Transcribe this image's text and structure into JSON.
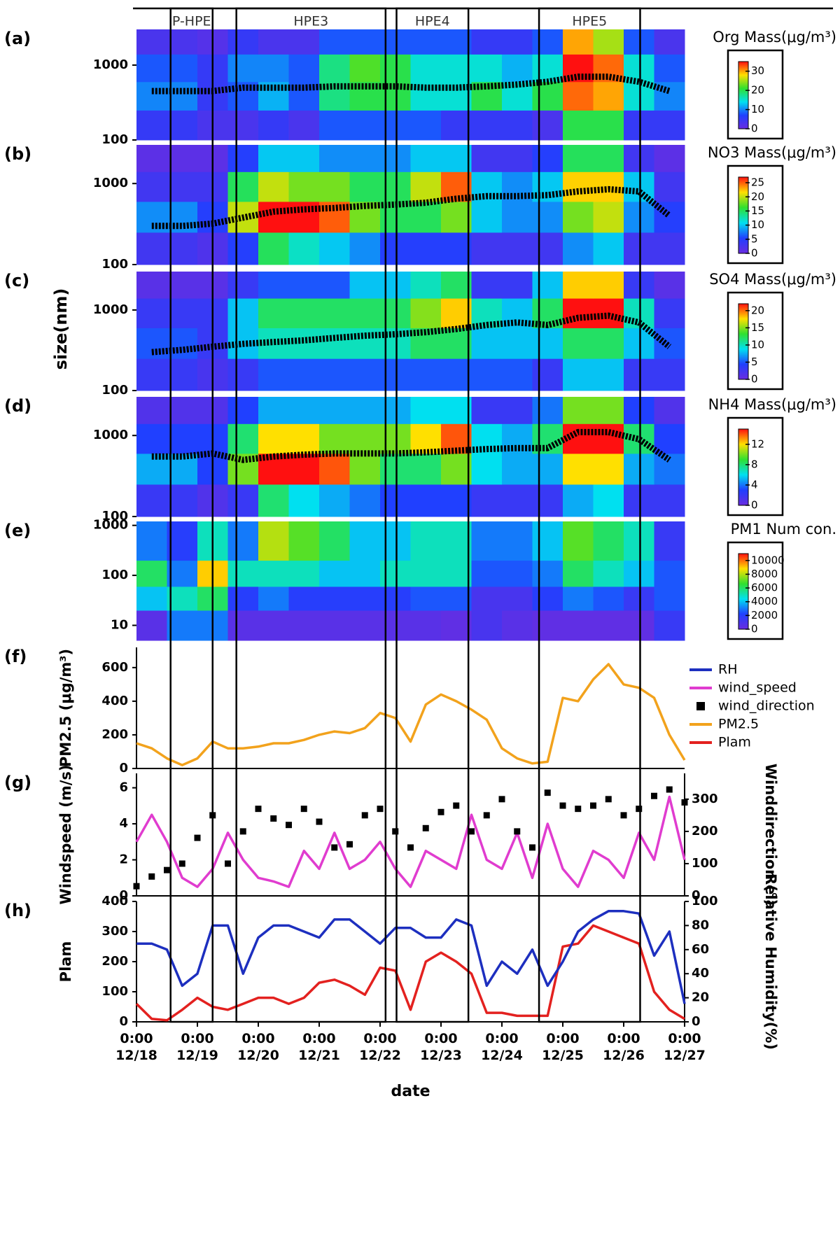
{
  "events": [
    {
      "label": "P-HPE",
      "start": 0.56,
      "end": 1.25
    },
    {
      "label": "HPE3",
      "start": 1.64,
      "end": 4.09
    },
    {
      "label": "HPE4",
      "start": 4.27,
      "end": 5.45
    },
    {
      "label": "HPE5",
      "start": 6.61,
      "end": 8.27
    }
  ],
  "size_label": "size(nm)",
  "chart_data": [
    {
      "type": "heatmap",
      "panel": "(a)",
      "title": "Org Mass(μg/m³)",
      "log_y": true,
      "ylim": [
        100,
        3000
      ],
      "yticks": [
        100,
        1000
      ],
      "xbins": [
        0,
        0.5,
        1,
        1.5,
        2,
        2.5,
        3,
        3.5,
        4,
        4.5,
        5,
        5.5,
        6,
        6.5,
        7,
        7.5,
        8,
        8.5,
        9
      ],
      "ybins": [
        100,
        250,
        600,
        1400,
        3000
      ],
      "z": [
        [
          5,
          5,
          3,
          3,
          5,
          3,
          8,
          8,
          8,
          8,
          5,
          5,
          5,
          3,
          20,
          20,
          5,
          5
        ],
        [
          10,
          10,
          5,
          8,
          12,
          8,
          18,
          20,
          20,
          15,
          15,
          20,
          15,
          20,
          32,
          30,
          15,
          10
        ],
        [
          8,
          8,
          5,
          10,
          10,
          8,
          18,
          22,
          20,
          15,
          15,
          15,
          12,
          15,
          35,
          32,
          15,
          8
        ],
        [
          3,
          3,
          2,
          5,
          3,
          3,
          8,
          8,
          8,
          8,
          8,
          5,
          5,
          8,
          30,
          25,
          8,
          3
        ]
      ],
      "zlim": [
        0,
        35
      ],
      "zticks": [
        0,
        10,
        20,
        30
      ],
      "line_x": [
        0.25,
        0.75,
        1.25,
        1.75,
        2.25,
        2.75,
        3.25,
        3.75,
        4.25,
        4.75,
        5.25,
        5.75,
        6.25,
        6.75,
        7.25,
        7.75,
        8.25,
        8.75
      ],
      "line_values": [
        450,
        450,
        450,
        500,
        500,
        500,
        520,
        520,
        520,
        500,
        500,
        520,
        550,
        600,
        700,
        700,
        600,
        450
      ],
      "line_color": "#000000"
    },
    {
      "type": "heatmap",
      "panel": "(b)",
      "title": "NO3 Mass(μg/m³)",
      "log_y": true,
      "ylim": [
        100,
        3000
      ],
      "yticks": [
        100,
        1000
      ],
      "xbins": [
        0,
        0.5,
        1,
        1.5,
        2,
        2.5,
        3,
        3.5,
        4,
        4.5,
        5,
        5.5,
        6,
        6.5,
        7,
        7.5,
        8,
        8.5,
        9
      ],
      "ybins": [
        100,
        250,
        600,
        1400,
        3000
      ],
      "z": [
        [
          3,
          3,
          2,
          5,
          15,
          12,
          10,
          8,
          5,
          5,
          5,
          3,
          3,
          3,
          8,
          10,
          3,
          3
        ],
        [
          8,
          8,
          5,
          20,
          27,
          27,
          25,
          18,
          15,
          15,
          18,
          10,
          8,
          8,
          18,
          20,
          8,
          5
        ],
        [
          3,
          3,
          3,
          15,
          20,
          18,
          18,
          15,
          15,
          20,
          25,
          10,
          8,
          10,
          22,
          22,
          10,
          3
        ],
        [
          1,
          1,
          1,
          5,
          10,
          10,
          8,
          8,
          8,
          10,
          10,
          3,
          3,
          5,
          15,
          15,
          3,
          1
        ]
      ],
      "zlim": [
        0,
        27
      ],
      "zticks": [
        0,
        5,
        10,
        15,
        20,
        25
      ],
      "line_x": [
        0.25,
        0.75,
        1.25,
        1.75,
        2.25,
        2.75,
        3.25,
        3.75,
        4.25,
        4.75,
        5.25,
        5.75,
        6.25,
        6.75,
        7.25,
        7.75,
        8.25,
        8.75
      ],
      "line_values": [
        300,
        300,
        320,
        380,
        450,
        480,
        500,
        530,
        550,
        580,
        650,
        700,
        700,
        720,
        800,
        850,
        800,
        400
      ],
      "line_color": "#000000"
    },
    {
      "type": "heatmap",
      "panel": "(c)",
      "title": "SO4 Mass(μg/m³)",
      "log_y": true,
      "ylim": [
        100,
        3000
      ],
      "yticks": [
        100,
        1000
      ],
      "xbins": [
        0,
        0.5,
        1,
        1.5,
        2,
        2.5,
        3,
        3.5,
        4,
        4.5,
        5,
        5.5,
        6,
        6.5,
        7,
        7.5,
        8,
        8.5,
        9
      ],
      "ybins": [
        100,
        250,
        600,
        1400,
        3000
      ],
      "z": [
        [
          3,
          3,
          2,
          3,
          5,
          5,
          5,
          5,
          5,
          5,
          5,
          5,
          5,
          3,
          8,
          8,
          3,
          3
        ],
        [
          5,
          5,
          3,
          8,
          10,
          10,
          10,
          10,
          10,
          12,
          12,
          8,
          8,
          8,
          12,
          12,
          8,
          5
        ],
        [
          3,
          3,
          3,
          8,
          12,
          12,
          12,
          12,
          12,
          15,
          18,
          10,
          8,
          12,
          22,
          22,
          10,
          3
        ],
        [
          1,
          1,
          1,
          3,
          5,
          5,
          5,
          8,
          8,
          10,
          12,
          3,
          3,
          8,
          18,
          18,
          3,
          1
        ]
      ],
      "zlim": [
        0,
        22
      ],
      "zticks": [
        0,
        5,
        10,
        15,
        20
      ],
      "line_x": [
        0.25,
        0.75,
        1.25,
        1.75,
        2.25,
        2.75,
        3.25,
        3.75,
        4.25,
        4.75,
        5.25,
        5.75,
        6.25,
        6.75,
        7.25,
        7.75,
        8.25,
        8.75
      ],
      "line_values": [
        300,
        320,
        350,
        380,
        400,
        420,
        450,
        480,
        500,
        530,
        580,
        650,
        700,
        650,
        800,
        850,
        700,
        350
      ],
      "line_color": "#000000"
    },
    {
      "type": "heatmap",
      "panel": "(d)",
      "title": "NH4 Mass(μg/m³)",
      "log_y": true,
      "ylim": [
        100,
        3000
      ],
      "yticks": [
        100,
        1000
      ],
      "xbins": [
        0,
        0.5,
        1,
        1.5,
        2,
        2.5,
        3,
        3.5,
        4,
        4.5,
        5,
        5.5,
        6,
        6.5,
        7,
        7.5,
        8,
        8.5,
        9
      ],
      "ybins": [
        100,
        250,
        600,
        1400,
        3000
      ],
      "z": [
        [
          2,
          2,
          1,
          2,
          8,
          6,
          5,
          4,
          3,
          3,
          3,
          2,
          2,
          2,
          5,
          6,
          2,
          2
        ],
        [
          5,
          5,
          3,
          10,
          15,
          15,
          14,
          10,
          8,
          8,
          10,
          6,
          5,
          5,
          12,
          12,
          5,
          4
        ],
        [
          3,
          3,
          3,
          8,
          12,
          12,
          10,
          10,
          10,
          12,
          14,
          6,
          5,
          8,
          15,
          15,
          8,
          3
        ],
        [
          1,
          1,
          1,
          3,
          5,
          5,
          5,
          5,
          5,
          6,
          6,
          2,
          2,
          4,
          10,
          10,
          3,
          1
        ]
      ],
      "zlim": [
        0,
        15
      ],
      "zticks": [
        0,
        4,
        8,
        12
      ],
      "line_x": [
        0.25,
        0.75,
        1.25,
        1.75,
        2.25,
        2.75,
        3.25,
        3.75,
        4.25,
        4.75,
        5.25,
        5.75,
        6.25,
        6.75,
        7.25,
        7.75,
        8.25,
        8.75
      ],
      "line_values": [
        550,
        550,
        600,
        500,
        550,
        580,
        600,
        600,
        600,
        620,
        650,
        680,
        700,
        700,
        1100,
        1100,
        900,
        500
      ],
      "line_color": "#000000"
    },
    {
      "type": "heatmap",
      "panel": "(e)",
      "title": "PM1 Num con.",
      "log_y": true,
      "ylim": [
        5,
        1200
      ],
      "yticks": [
        10,
        100,
        1000
      ],
      "xbins": [
        0,
        0.5,
        1,
        1.5,
        2,
        2.5,
        3,
        3.5,
        4,
        4.5,
        5,
        5.5,
        6,
        6.5,
        7,
        7.5,
        8,
        8.5,
        9
      ],
      "ybins": [
        5,
        20,
        60,
        200,
        1200
      ],
      "z": [
        [
          500,
          3000,
          3000,
          500,
          500,
          500,
          500,
          500,
          500,
          500,
          300,
          1000,
          500,
          300,
          300,
          300,
          300,
          1500
        ],
        [
          4000,
          5000,
          6000,
          2000,
          3000,
          2000,
          2000,
          2000,
          2000,
          2500,
          2500,
          1000,
          1000,
          2000,
          3000,
          2500,
          1500,
          2500
        ],
        [
          6000,
          3000,
          9000,
          5000,
          5000,
          5000,
          4000,
          4000,
          5000,
          5000,
          5000,
          2500,
          2500,
          3000,
          6000,
          5000,
          4000,
          2500
        ],
        [
          3000,
          2000,
          5000,
          3000,
          8000,
          7000,
          6000,
          4000,
          4000,
          5000,
          5000,
          3000,
          3000,
          4000,
          7000,
          6000,
          5000,
          1500
        ]
      ],
      "zlim": [
        0,
        11000
      ],
      "zticks": [
        0,
        2000,
        4000,
        6000,
        8000,
        10000
      ]
    },
    {
      "type": "line",
      "panel": "(f)",
      "ylabel": "PM2.5 (μg/m³)",
      "ylim": [
        0,
        720
      ],
      "yticks": [
        0,
        200,
        400,
        600
      ],
      "x": [
        0,
        0.25,
        0.5,
        0.75,
        1,
        1.25,
        1.5,
        1.75,
        2,
        2.25,
        2.5,
        2.75,
        3,
        3.25,
        3.5,
        3.75,
        4,
        4.25,
        4.5,
        4.75,
        5,
        5.25,
        5.5,
        5.75,
        6,
        6.25,
        6.5,
        6.75,
        7,
        7.25,
        7.5,
        7.75,
        8,
        8.25,
        8.5,
        8.75,
        9
      ],
      "series": [
        {
          "name": "PM2.5",
          "color": "#f2a21c",
          "values": [
            150,
            120,
            60,
            20,
            60,
            160,
            120,
            120,
            130,
            150,
            150,
            170,
            200,
            220,
            210,
            240,
            330,
            300,
            160,
            380,
            440,
            400,
            350,
            290,
            120,
            60,
            30,
            40,
            420,
            400,
            530,
            620,
            500,
            480,
            420,
            200,
            50
          ]
        }
      ]
    },
    {
      "type": "line",
      "panel": "(g)",
      "ylabel": "Windspeed (m/s)",
      "y2label": "Winddirection (°)",
      "ylim": [
        0,
        6.8
      ],
      "yticks": [
        0,
        2,
        4,
        6
      ],
      "y2lim": [
        0,
        380
      ],
      "y2ticks": [
        0,
        100,
        200,
        300
      ],
      "x": [
        0,
        0.25,
        0.5,
        0.75,
        1,
        1.25,
        1.5,
        1.75,
        2,
        2.25,
        2.5,
        2.75,
        3,
        3.25,
        3.5,
        3.75,
        4,
        4.25,
        4.5,
        4.75,
        5,
        5.25,
        5.5,
        5.75,
        6,
        6.25,
        6.5,
        6.75,
        7,
        7.25,
        7.5,
        7.75,
        8,
        8.25,
        8.5,
        8.75,
        9
      ],
      "series": [
        {
          "name": "wind_speed",
          "color": "#e03ccf",
          "values": [
            3,
            4.5,
            3,
            1,
            0.5,
            1.5,
            3.5,
            2,
            1,
            0.8,
            0.5,
            2.5,
            1.5,
            3.5,
            1.5,
            2,
            3,
            1.5,
            0.5,
            2.5,
            2,
            1.5,
            4.5,
            2,
            1.5,
            3.5,
            1,
            4,
            1.5,
            0.5,
            2.5,
            2,
            1,
            3.5,
            2,
            5.5,
            2
          ]
        },
        {
          "name": "wind_direction",
          "color": "#000000",
          "axis": "y2",
          "mode": "markers",
          "values": [
            30,
            60,
            80,
            100,
            180,
            250,
            100,
            200,
            270,
            240,
            220,
            270,
            230,
            150,
            160,
            250,
            270,
            200,
            150,
            210,
            260,
            280,
            200,
            250,
            300,
            200,
            150,
            320,
            280,
            270,
            280,
            300,
            250,
            270,
            310,
            330,
            290
          ]
        }
      ]
    },
    {
      "type": "line",
      "panel": "(h)",
      "ylabel": "Plam",
      "y2label": "Relative Humidity(%)",
      "ylim": [
        0,
        400
      ],
      "yticks": [
        0,
        100,
        200,
        300,
        400
      ],
      "y2lim": [
        0,
        100
      ],
      "y2ticks": [
        0,
        20,
        40,
        60,
        80,
        100
      ],
      "xlim": [
        0,
        9
      ],
      "xlabel": "date",
      "xticks": [
        {
          "value": 0,
          "label": "0:00\n12/18"
        },
        {
          "value": 1,
          "label": "0:00\n12/19"
        },
        {
          "value": 2,
          "label": "0:00\n12/20"
        },
        {
          "value": 3,
          "label": "0:00\n12/21"
        },
        {
          "value": 4,
          "label": "0:00\n12/22"
        },
        {
          "value": 5,
          "label": "0:00\n12/23"
        },
        {
          "value": 6,
          "label": "0:00\n12/24"
        },
        {
          "value": 7,
          "label": "0:00\n12/25"
        },
        {
          "value": 8,
          "label": "0:00\n12/26"
        },
        {
          "value": 9,
          "label": "0:00\n12/27"
        }
      ],
      "x": [
        0,
        0.25,
        0.5,
        0.75,
        1,
        1.25,
        1.5,
        1.75,
        2,
        2.25,
        2.5,
        2.75,
        3,
        3.25,
        3.5,
        3.75,
        4,
        4.25,
        4.5,
        4.75,
        5,
        5.25,
        5.5,
        5.75,
        6,
        6.25,
        6.5,
        6.75,
        7,
        7.25,
        7.5,
        7.75,
        8,
        8.25,
        8.5,
        8.75,
        9
      ],
      "series": [
        {
          "name": "Plam",
          "color": "#e3211f",
          "values": [
            60,
            10,
            5,
            40,
            80,
            50,
            40,
            60,
            80,
            80,
            60,
            80,
            130,
            140,
            120,
            90,
            180,
            170,
            40,
            200,
            230,
            200,
            160,
            30,
            30,
            20,
            20,
            20,
            250,
            260,
            320,
            300,
            280,
            260,
            100,
            40,
            10
          ]
        },
        {
          "name": "RH",
          "color": "#1d2fbf",
          "axis": "y2",
          "values": [
            65,
            65,
            60,
            30,
            40,
            80,
            80,
            40,
            70,
            80,
            80,
            75,
            70,
            85,
            85,
            75,
            65,
            78,
            78,
            70,
            70,
            85,
            80,
            30,
            50,
            40,
            60,
            30,
            50,
            75,
            85,
            92,
            92,
            90,
            55,
            75,
            15
          ]
        }
      ]
    }
  ]
}
